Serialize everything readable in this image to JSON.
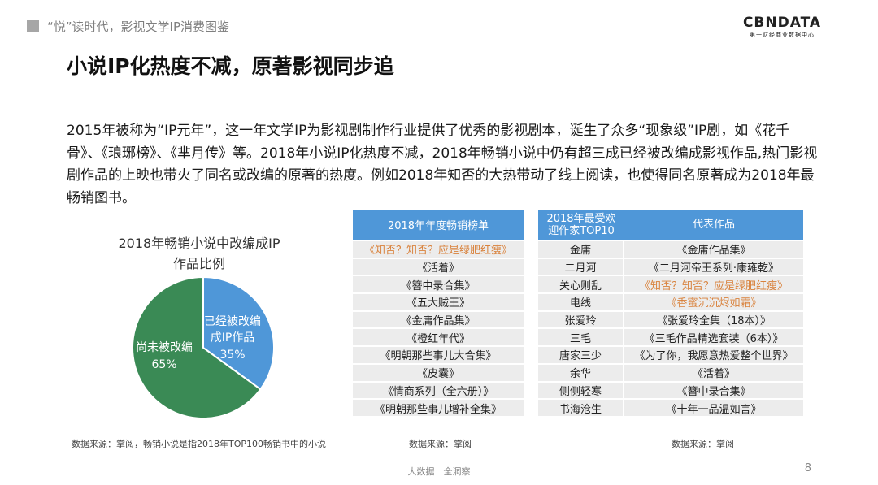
{
  "header": {
    "title": "“悦”读时代，影视文学IP消费图鉴"
  },
  "logo": {
    "main": "CBNDATA",
    "sub": "第一财经商业数据中心"
  },
  "slide": {
    "title": "小说IP化热度不减，原著影视同步追",
    "paragraph": "2015年被称为“IP元年”，这一年文学IP为影视剧制作行业提供了优秀的影视剧本，诞生了众多“现象级”IP剧，如《花千骨》、《琅琊榜》、《芈月传》等。2018年小说IP化热度不减，2018年畅销小说中仍有超三成已经被改编成影视作品,热门影视剧作品的上映也带火了同名或改编的原著的热度。例如2018年知否的大热带动了线上阅读，也使得同名原著成为2018年最畅销图书。"
  },
  "chart_data": {
    "type": "pie",
    "title": "2018年畅销小说中改编成IP作品比例",
    "slices": [
      {
        "label": "已经被改编成IP作品",
        "value": 35,
        "value_label": "35%",
        "color": "#4f97d8"
      },
      {
        "label": "尚未被改编",
        "value": 65,
        "value_label": "65%",
        "color": "#3a8a55"
      }
    ]
  },
  "pie": {
    "title_line1": "2018年畅销小说中改编成IP",
    "title_line2": "作品比例",
    "adapted_line1": "已经被改编",
    "adapted_line2": "成IP作品",
    "not_adapted": "尚未被改编"
  },
  "sources": {
    "pie": "数据来源：掌阅，畅销小说是指2018年TOP100畅销书中的小说",
    "table_a": "数据来源：掌阅",
    "table_b": "数据来源：掌阅"
  },
  "table_a": {
    "header": "2018年年度畅销榜单",
    "rows": [
      {
        "title": "《知否？知否？应是绿肥红瘦》",
        "highlight": true
      },
      {
        "title": "《活着》",
        "highlight": false
      },
      {
        "title": "《簪中录合集》",
        "highlight": false
      },
      {
        "title": "《五大贼王》",
        "highlight": false
      },
      {
        "title": "《金庸作品集》",
        "highlight": false
      },
      {
        "title": "《橙红年代》",
        "highlight": false
      },
      {
        "title": "《明朝那些事儿大合集》",
        "highlight": false
      },
      {
        "title": "《皮囊》",
        "highlight": false
      },
      {
        "title": "《情商系列（全六册）》",
        "highlight": false
      },
      {
        "title": "《明朝那些事儿增补全集》",
        "highlight": false
      }
    ]
  },
  "table_b": {
    "header_author_line1": "2018年最受欢",
    "header_author_line2": "迎作家TOP10",
    "header_work": "代表作品",
    "rows": [
      {
        "author": "金庸",
        "work": "《金庸作品集》",
        "highlight": false
      },
      {
        "author": "二月河",
        "work": "《二月河帝王系列·康雍乾》",
        "highlight": false
      },
      {
        "author": "关心则乱",
        "work": "《知否？知否？应是绿肥红瘦》",
        "highlight": true
      },
      {
        "author": "电线",
        "work": "《香蜜沉沉烬如霜》",
        "highlight": true
      },
      {
        "author": "张爱玲",
        "work": "《张爱玲全集（18本）》",
        "highlight": false
      },
      {
        "author": "三毛",
        "work": "《三毛作品精选套装（6本）》",
        "highlight": false
      },
      {
        "author": "唐家三少",
        "work": "《为了你，我愿意热爱整个世界》",
        "highlight": false
      },
      {
        "author": "余华",
        "work": "《活着》",
        "highlight": false
      },
      {
        "author": "侧侧轻寒",
        "work": "《簪中录合集》",
        "highlight": false
      },
      {
        "author": "书海沧生",
        "work": "《十年一品温如言》",
        "highlight": false
      }
    ]
  },
  "footer": {
    "center": "大数据　全洞察",
    "page": "8"
  }
}
